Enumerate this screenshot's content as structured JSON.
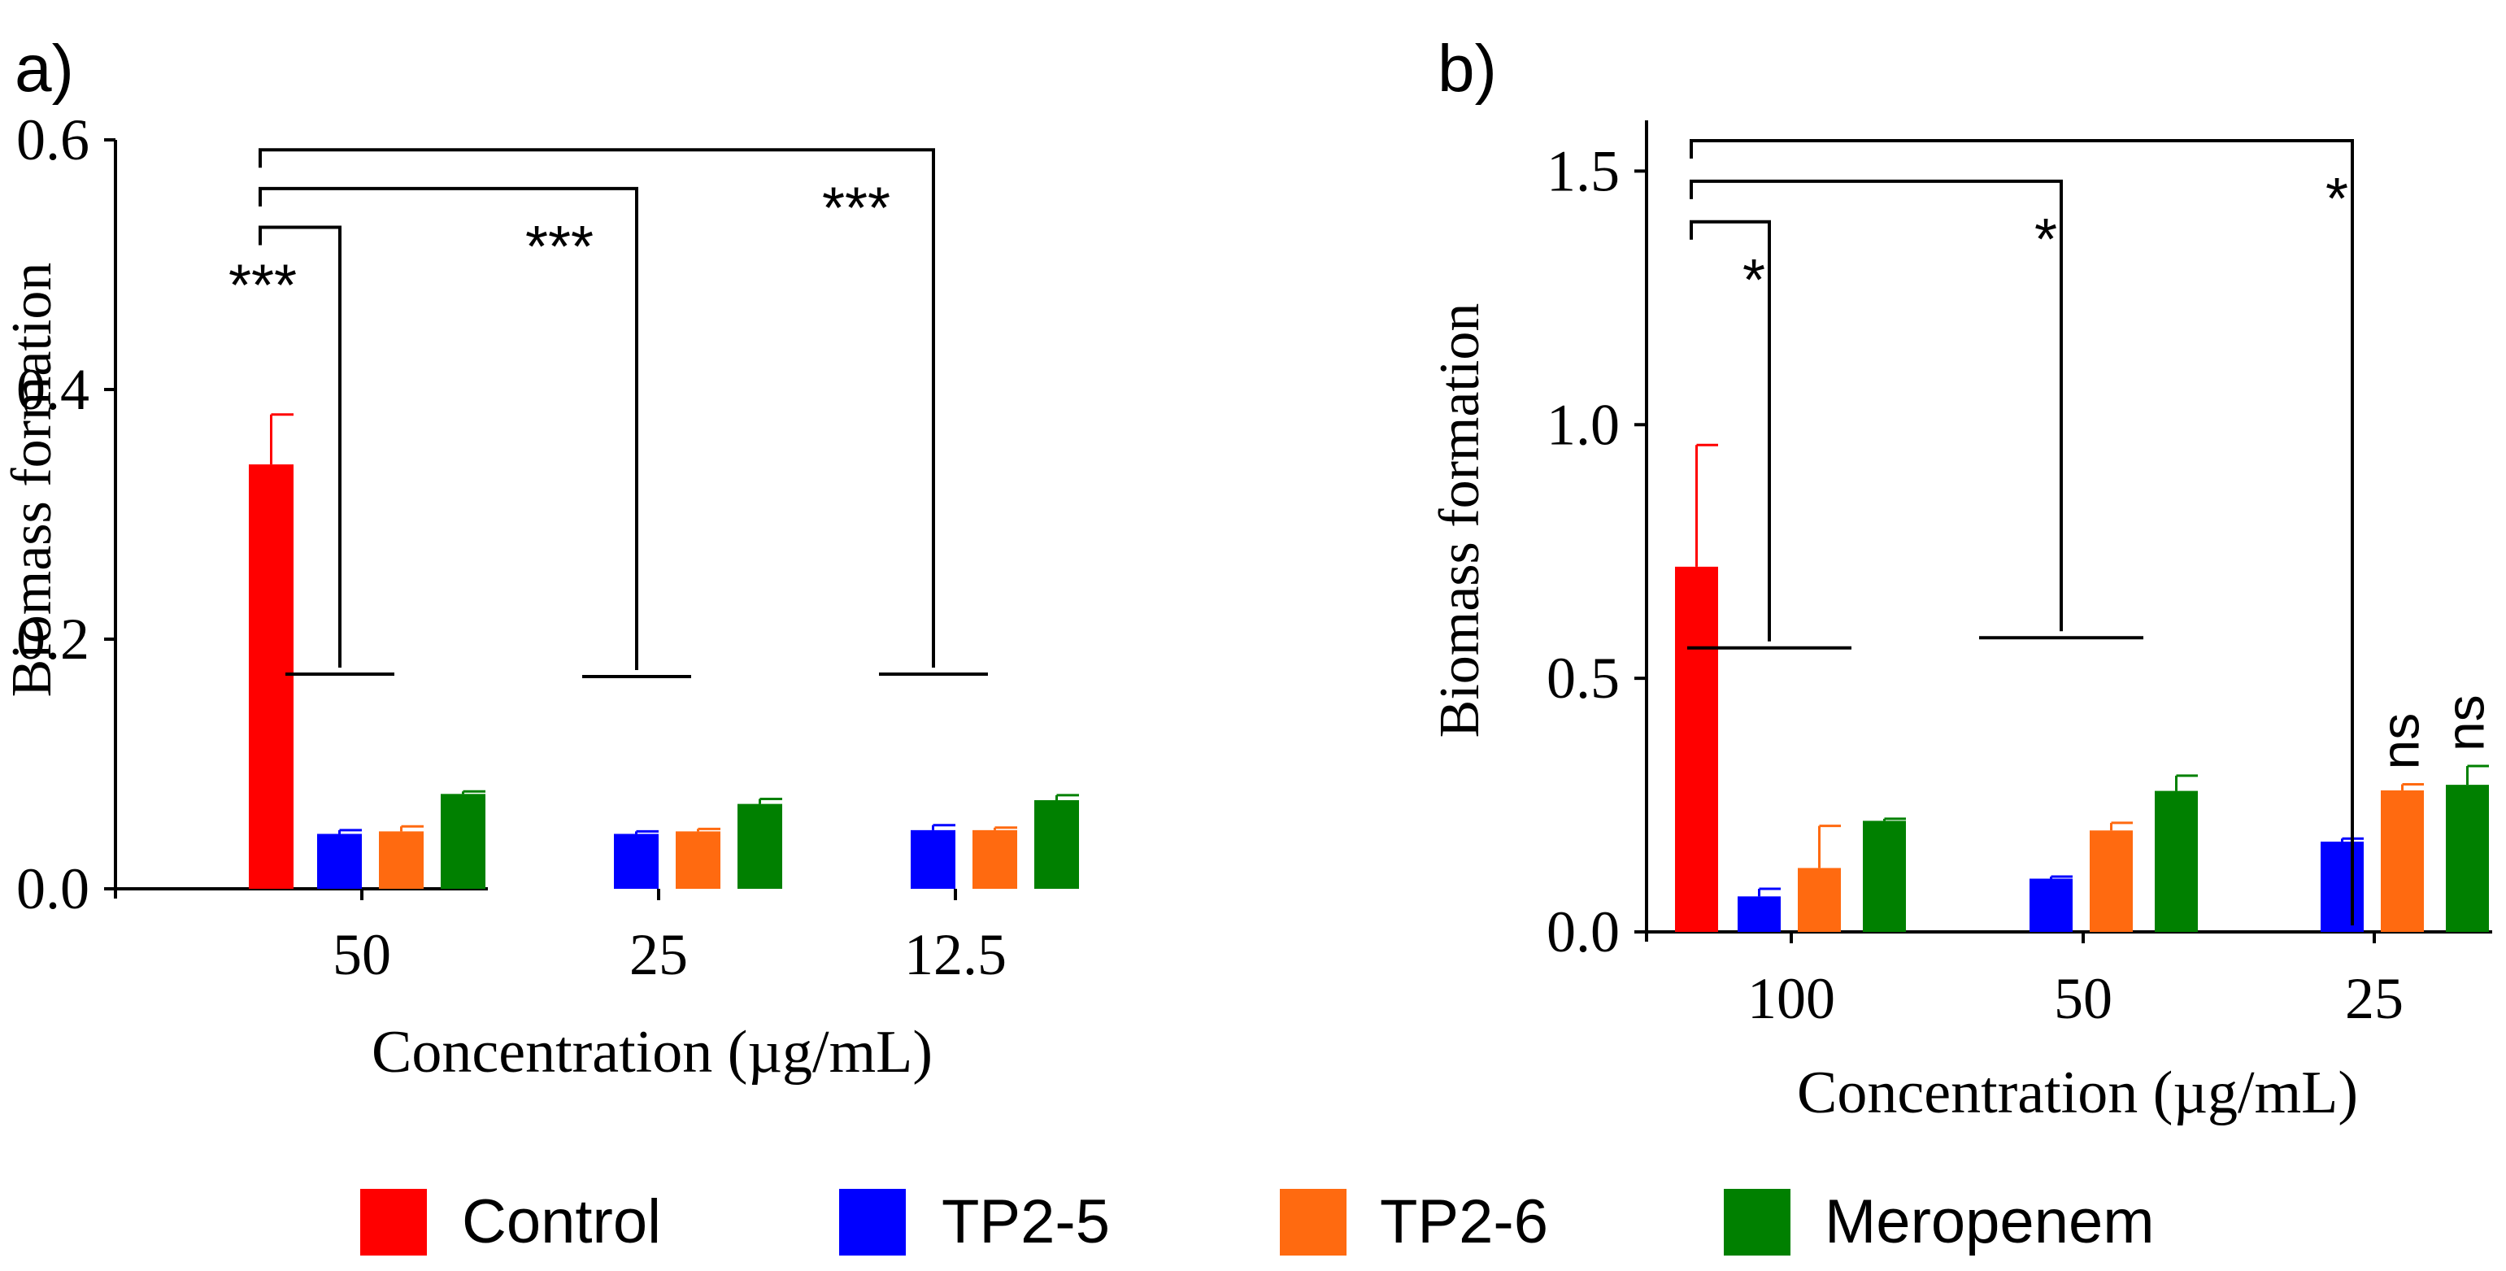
{
  "chart_data": [
    {
      "type": "bar",
      "panel_label": "a)",
      "ylabel": "Biomass formation",
      "xlabel": "Concentration (µg/mL)",
      "ylim": [
        0,
        0.6
      ],
      "yticks": [
        0.0,
        0.2,
        0.4,
        0.6
      ],
      "ytick_labels": [
        "0.0",
        "0.2",
        "0.4",
        "0.6"
      ],
      "categories": [
        "50",
        "25",
        "12.5"
      ],
      "series": [
        {
          "name": "Control",
          "values": [
            0.34,
            null,
            null
          ],
          "errors": [
            0.04,
            null,
            null
          ]
        },
        {
          "name": "TP2-5",
          "values": [
            0.044,
            0.044,
            0.047
          ],
          "errors": [
            0.003,
            0.002,
            0.004
          ]
        },
        {
          "name": "TP2-6",
          "values": [
            0.046,
            0.046,
            0.047
          ],
          "errors": [
            0.004,
            0.002,
            0.002
          ]
        },
        {
          "name": "Meropenem",
          "values": [
            0.076,
            0.068,
            0.071
          ],
          "errors": [
            0.002,
            0.004,
            0.004
          ]
        }
      ],
      "significance": [
        {
          "label": "***",
          "tip_y": 0.53,
          "base_y": 0.172,
          "category": "50"
        },
        {
          "label": "***",
          "tip_y": 0.561,
          "base_y": 0.17,
          "category": "25"
        },
        {
          "label": "***",
          "tip_y": 0.592,
          "base_y": 0.172,
          "category": "12.5"
        }
      ]
    },
    {
      "type": "bar",
      "panel_label": "b)",
      "ylabel": "Biomass formation",
      "xlabel": "Concentration (µg/mL)",
      "ylim": [
        0,
        1.6
      ],
      "yticks": [
        0.0,
        0.5,
        1.0,
        1.5
      ],
      "ytick_labels": [
        "0.0",
        "0.5",
        "1.0",
        "1.5"
      ],
      "categories": [
        "100",
        "50",
        "25"
      ],
      "series": [
        {
          "name": "Control",
          "values": [
            0.72,
            null,
            null
          ],
          "errors": [
            0.24,
            null,
            null
          ]
        },
        {
          "name": "TP2-5",
          "values": [
            0.07,
            0.105,
            0.178
          ],
          "errors": [
            0.015,
            0.004,
            0.006
          ]
        },
        {
          "name": "TP2-6",
          "values": [
            0.126,
            0.2,
            0.279
          ],
          "errors": [
            0.083,
            0.015,
            0.012
          ]
        },
        {
          "name": "Meropenem",
          "values": [
            0.219,
            0.278,
            0.29
          ],
          "errors": [
            0.004,
            0.03,
            0.037
          ]
        }
      ],
      "significance": [
        {
          "label": "*",
          "tip_y": 1.4,
          "base_y": 0.56,
          "category": "100"
        },
        {
          "label": "*",
          "tip_y": 1.48,
          "base_y": 0.58,
          "category": "50"
        },
        {
          "label": "*",
          "tip_y": 1.56,
          "base_y": 0.0,
          "category": "25"
        }
      ],
      "annotations": [
        {
          "text": "ns",
          "series": "TP2-6",
          "category": "25"
        },
        {
          "text": "ns",
          "series": "Meropenem",
          "category": "25"
        }
      ]
    }
  ],
  "legend": [
    {
      "name": "Control",
      "color": "#ff0000"
    },
    {
      "name": "TP2-5",
      "color": "#0000ff"
    },
    {
      "name": "TP2-6",
      "color": "#ff6a10"
    },
    {
      "name": "Meropenem",
      "color": "#008000"
    }
  ]
}
